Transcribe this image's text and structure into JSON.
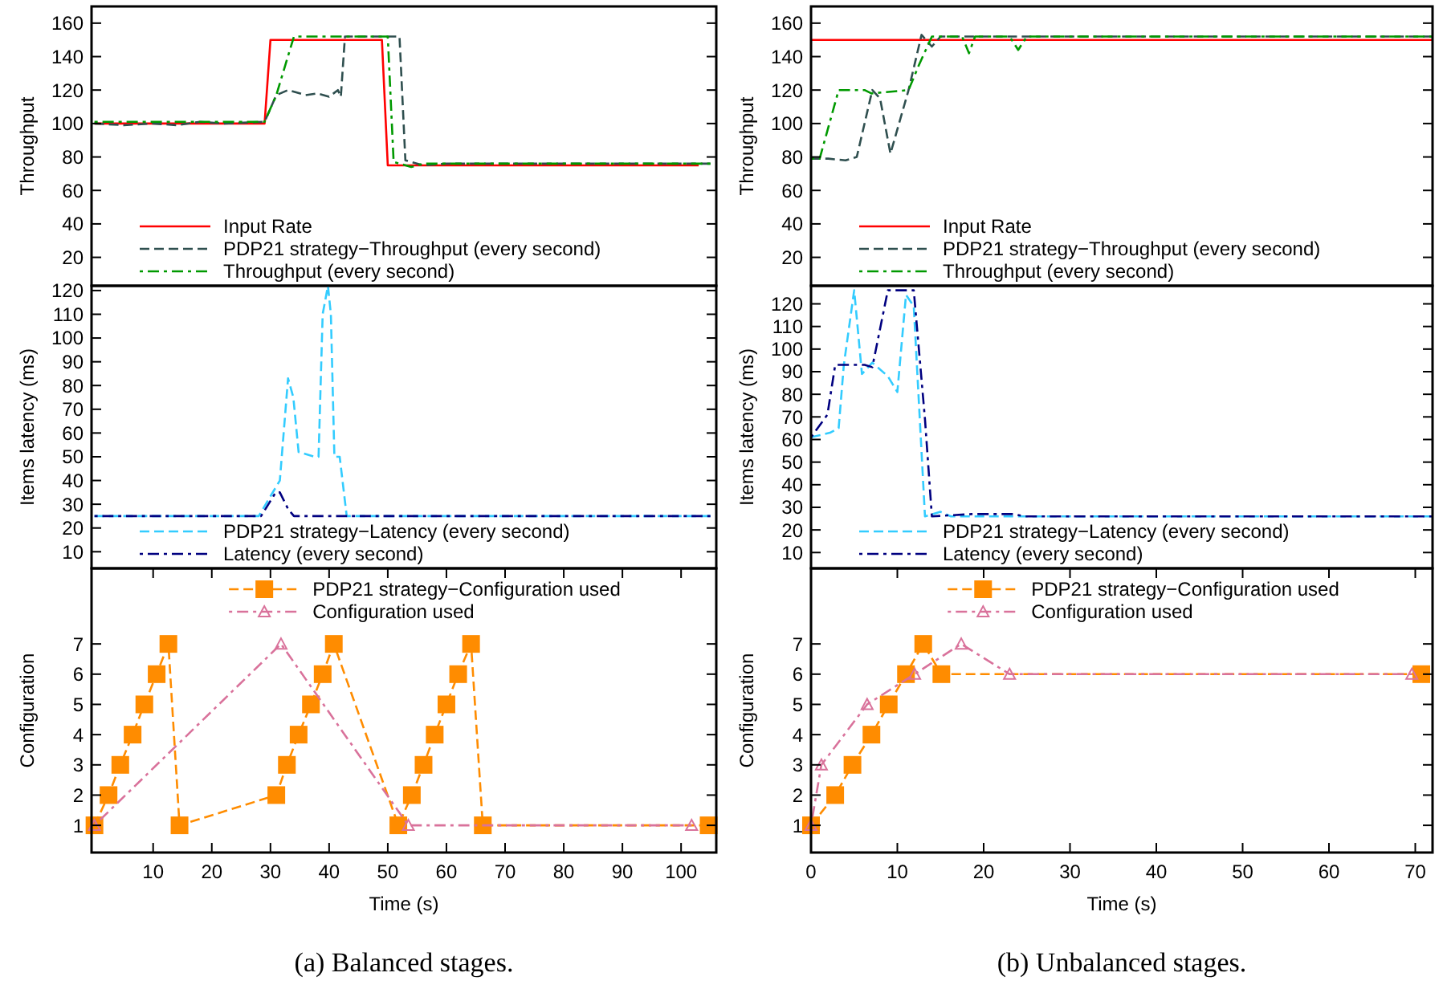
{
  "chart_data": [
    {
      "type": "line",
      "ylabel": "Throughput",
      "xlim": [
        -0.5,
        106
      ],
      "ylim": [
        3,
        170
      ],
      "yticks": [
        20,
        40,
        60,
        80,
        100,
        120,
        140,
        160
      ],
      "tick_labels": "y",
      "legend": "bottom left",
      "series": [
        {
          "name": "Input Rate",
          "color": "#ff0000",
          "line_style": "solid",
          "x": [
            0,
            29,
            30,
            49,
            50,
            103
          ],
          "values": [
            100,
            100,
            150,
            150,
            75,
            75
          ]
        },
        {
          "name": "PDP21 strategy−Throughput (every second)",
          "color": "#2f4f4f",
          "line_style": "dashed",
          "x": [
            0,
            5,
            10,
            14,
            18,
            22,
            29,
            31,
            33,
            36,
            38,
            40,
            41.5,
            42,
            42.7,
            52,
            53,
            56,
            60,
            70,
            80,
            90,
            105
          ],
          "values": [
            100,
            99,
            100,
            99,
            101,
            100,
            101,
            117,
            120,
            117,
            118,
            116,
            120,
            116,
            152,
            152,
            78,
            75,
            76,
            76,
            76,
            76,
            76
          ]
        },
        {
          "name": "Throughput (every second)",
          "color": "#009900",
          "line_style": "dashdot",
          "x": [
            0,
            29,
            31,
            34,
            50,
            51,
            54,
            56,
            105
          ],
          "values": [
            101,
            101,
            117,
            152,
            152,
            77,
            74,
            76,
            76
          ]
        }
      ]
    },
    {
      "type": "line",
      "ylabel": "Items latency (ms)",
      "xlim": [
        -0.5,
        106
      ],
      "ylim": [
        3,
        122
      ],
      "yticks": [
        10,
        20,
        30,
        40,
        50,
        60,
        70,
        80,
        90,
        100,
        110,
        120
      ],
      "tick_labels": "y",
      "legend": "bottom left",
      "series": [
        {
          "name": "PDP21 strategy−Latency (every second)",
          "color": "#33ccff",
          "line_style": "dashed",
          "x": [
            0,
            28,
            31.6,
            33,
            33.9,
            34.8,
            37.5,
            38.2,
            38.9,
            39.8,
            40.3,
            40.9,
            41.8,
            43,
            105
          ],
          "values": [
            25,
            25,
            40,
            83,
            75,
            52,
            50,
            50,
            110,
            122,
            110,
            50,
            50,
            25,
            25
          ]
        },
        {
          "name": "Latency (every second)",
          "color": "#000080",
          "line_style": "dashdot",
          "x": [
            0,
            28.4,
            30.9,
            31.6,
            33,
            34,
            105
          ],
          "values": [
            25,
            25,
            35,
            35,
            28,
            25,
            25
          ]
        }
      ]
    },
    {
      "type": "line",
      "ylabel": "Configuration",
      "xlabel": "Time (s)",
      "xlim": [
        -0.5,
        106
      ],
      "ylim": [
        0.1,
        9.5
      ],
      "xticks": [
        10,
        20,
        30,
        40,
        50,
        60,
        70,
        80,
        90,
        100
      ],
      "yticks": [
        1,
        2,
        3,
        4,
        5,
        6,
        7
      ],
      "legend": "top",
      "annotations": [
        "(a) Balanced stages."
      ],
      "series": [
        {
          "name": "PDP21 strategy−Configuration used",
          "color": "#ff8c00",
          "line_style": "dashed",
          "marker": "square",
          "x": [
            0,
            2.4,
            4.4,
            6.5,
            8.5,
            10.6,
            12.6,
            14.5,
            31,
            32.8,
            34.8,
            36.9,
            38.9,
            40.8,
            51.8,
            54.1,
            56.1,
            58,
            60,
            62,
            64.2,
            66.2,
            104.7
          ],
          "values": [
            1,
            2,
            3,
            4,
            5,
            6,
            7,
            1,
            2,
            3,
            4,
            5,
            6,
            7,
            1,
            2,
            3,
            4,
            5,
            6,
            7,
            1,
            1
          ]
        },
        {
          "name": "Configuration used",
          "color": "#d9729b",
          "line_style": "dashdot",
          "marker": "triangle",
          "x": [
            0,
            31.8,
            53.5,
            101.8
          ],
          "values": [
            1,
            7,
            1,
            1
          ]
        }
      ]
    },
    {
      "type": "line",
      "ylabel": "Throughput",
      "xlim": [
        0,
        72
      ],
      "ylim": [
        3,
        170
      ],
      "yticks": [
        20,
        40,
        60,
        80,
        100,
        120,
        140,
        160
      ],
      "tick_labels": "y",
      "legend": "bottom left",
      "series": [
        {
          "name": "Input Rate",
          "color": "#ff0000",
          "line_style": "solid",
          "x": [
            0,
            72
          ],
          "values": [
            150,
            150
          ]
        },
        {
          "name": "PDP21 strategy−Throughput (every second)",
          "color": "#2f4f4f",
          "line_style": "dashed",
          "x": [
            0,
            2,
            4,
            5.3,
            7.1,
            8,
            9.2,
            11.3,
            12.8,
            14,
            15,
            16.8,
            72
          ],
          "values": [
            79,
            79,
            78,
            80,
            120,
            115,
            82,
            120,
            153,
            146,
            152,
            152,
            152
          ]
        },
        {
          "name": "Throughput (every second)",
          "color": "#009900",
          "line_style": "dashdot",
          "x": [
            0,
            1,
            3.2,
            6.2,
            7,
            11.3,
            12.5,
            14,
            17.5,
            18.3,
            19,
            23,
            24,
            25,
            72
          ],
          "values": [
            79,
            79,
            120,
            120,
            118,
            120,
            135,
            152,
            152,
            142,
            152,
            152,
            144,
            152,
            152
          ]
        }
      ]
    },
    {
      "type": "line",
      "ylabel": "Items latency (ms)",
      "xlim": [
        0,
        72
      ],
      "ylim": [
        3,
        128
      ],
      "yticks": [
        10,
        20,
        30,
        40,
        50,
        60,
        70,
        80,
        90,
        100,
        110,
        120
      ],
      "tick_labels": "y",
      "legend": "bottom left",
      "series": [
        {
          "name": "PDP21 strategy−Latency (every second)",
          "color": "#33ccff",
          "line_style": "dashed",
          "x": [
            0,
            2.2,
            3.2,
            3.8,
            5,
            5.9,
            7.1,
            8.9,
            10,
            11,
            11.9,
            13.2,
            15,
            16.2,
            72
          ],
          "values": [
            61,
            63,
            65,
            93,
            126,
            89,
            94,
            88,
            81,
            124,
            119,
            26,
            28,
            26,
            26
          ]
        },
        {
          "name": "Latency (every second)",
          "color": "#000080",
          "line_style": "dashdot",
          "x": [
            0,
            1.9,
            2.8,
            4,
            6.2,
            7.1,
            8.9,
            11.9,
            13.2,
            14,
            18.6,
            23.5,
            24.7,
            72
          ],
          "values": [
            61,
            71,
            93,
            93,
            93,
            92,
            126,
            126,
            69,
            26,
            27,
            27,
            26,
            26
          ]
        }
      ]
    },
    {
      "type": "line",
      "ylabel": "Configuration",
      "xlabel": "Time (s)",
      "xlim": [
        0,
        72
      ],
      "ylim": [
        0.1,
        9.5
      ],
      "xticks": [
        0,
        10,
        20,
        30,
        40,
        50,
        60,
        70
      ],
      "yticks": [
        1,
        2,
        3,
        4,
        5,
        6,
        7
      ],
      "legend": "top",
      "annotations": [
        "(b) Unbalanced stages."
      ],
      "series": [
        {
          "name": "PDP21 strategy−Configuration used",
          "color": "#ff8c00",
          "line_style": "dashed",
          "marker": "square",
          "x": [
            0,
            2.8,
            4.8,
            7,
            9,
            11,
            13,
            15.1,
            70.7
          ],
          "values": [
            1,
            2,
            3,
            4,
            5,
            6,
            7,
            6,
            6
          ]
        },
        {
          "name": "Configuration used",
          "color": "#d9729b",
          "line_style": "dashdot",
          "marker": "triangle",
          "x": [
            0,
            1.2,
            6.5,
            12,
            17.4,
            23,
            69.6
          ],
          "values": [
            1,
            3,
            5,
            6,
            7,
            6,
            6
          ]
        }
      ]
    }
  ]
}
